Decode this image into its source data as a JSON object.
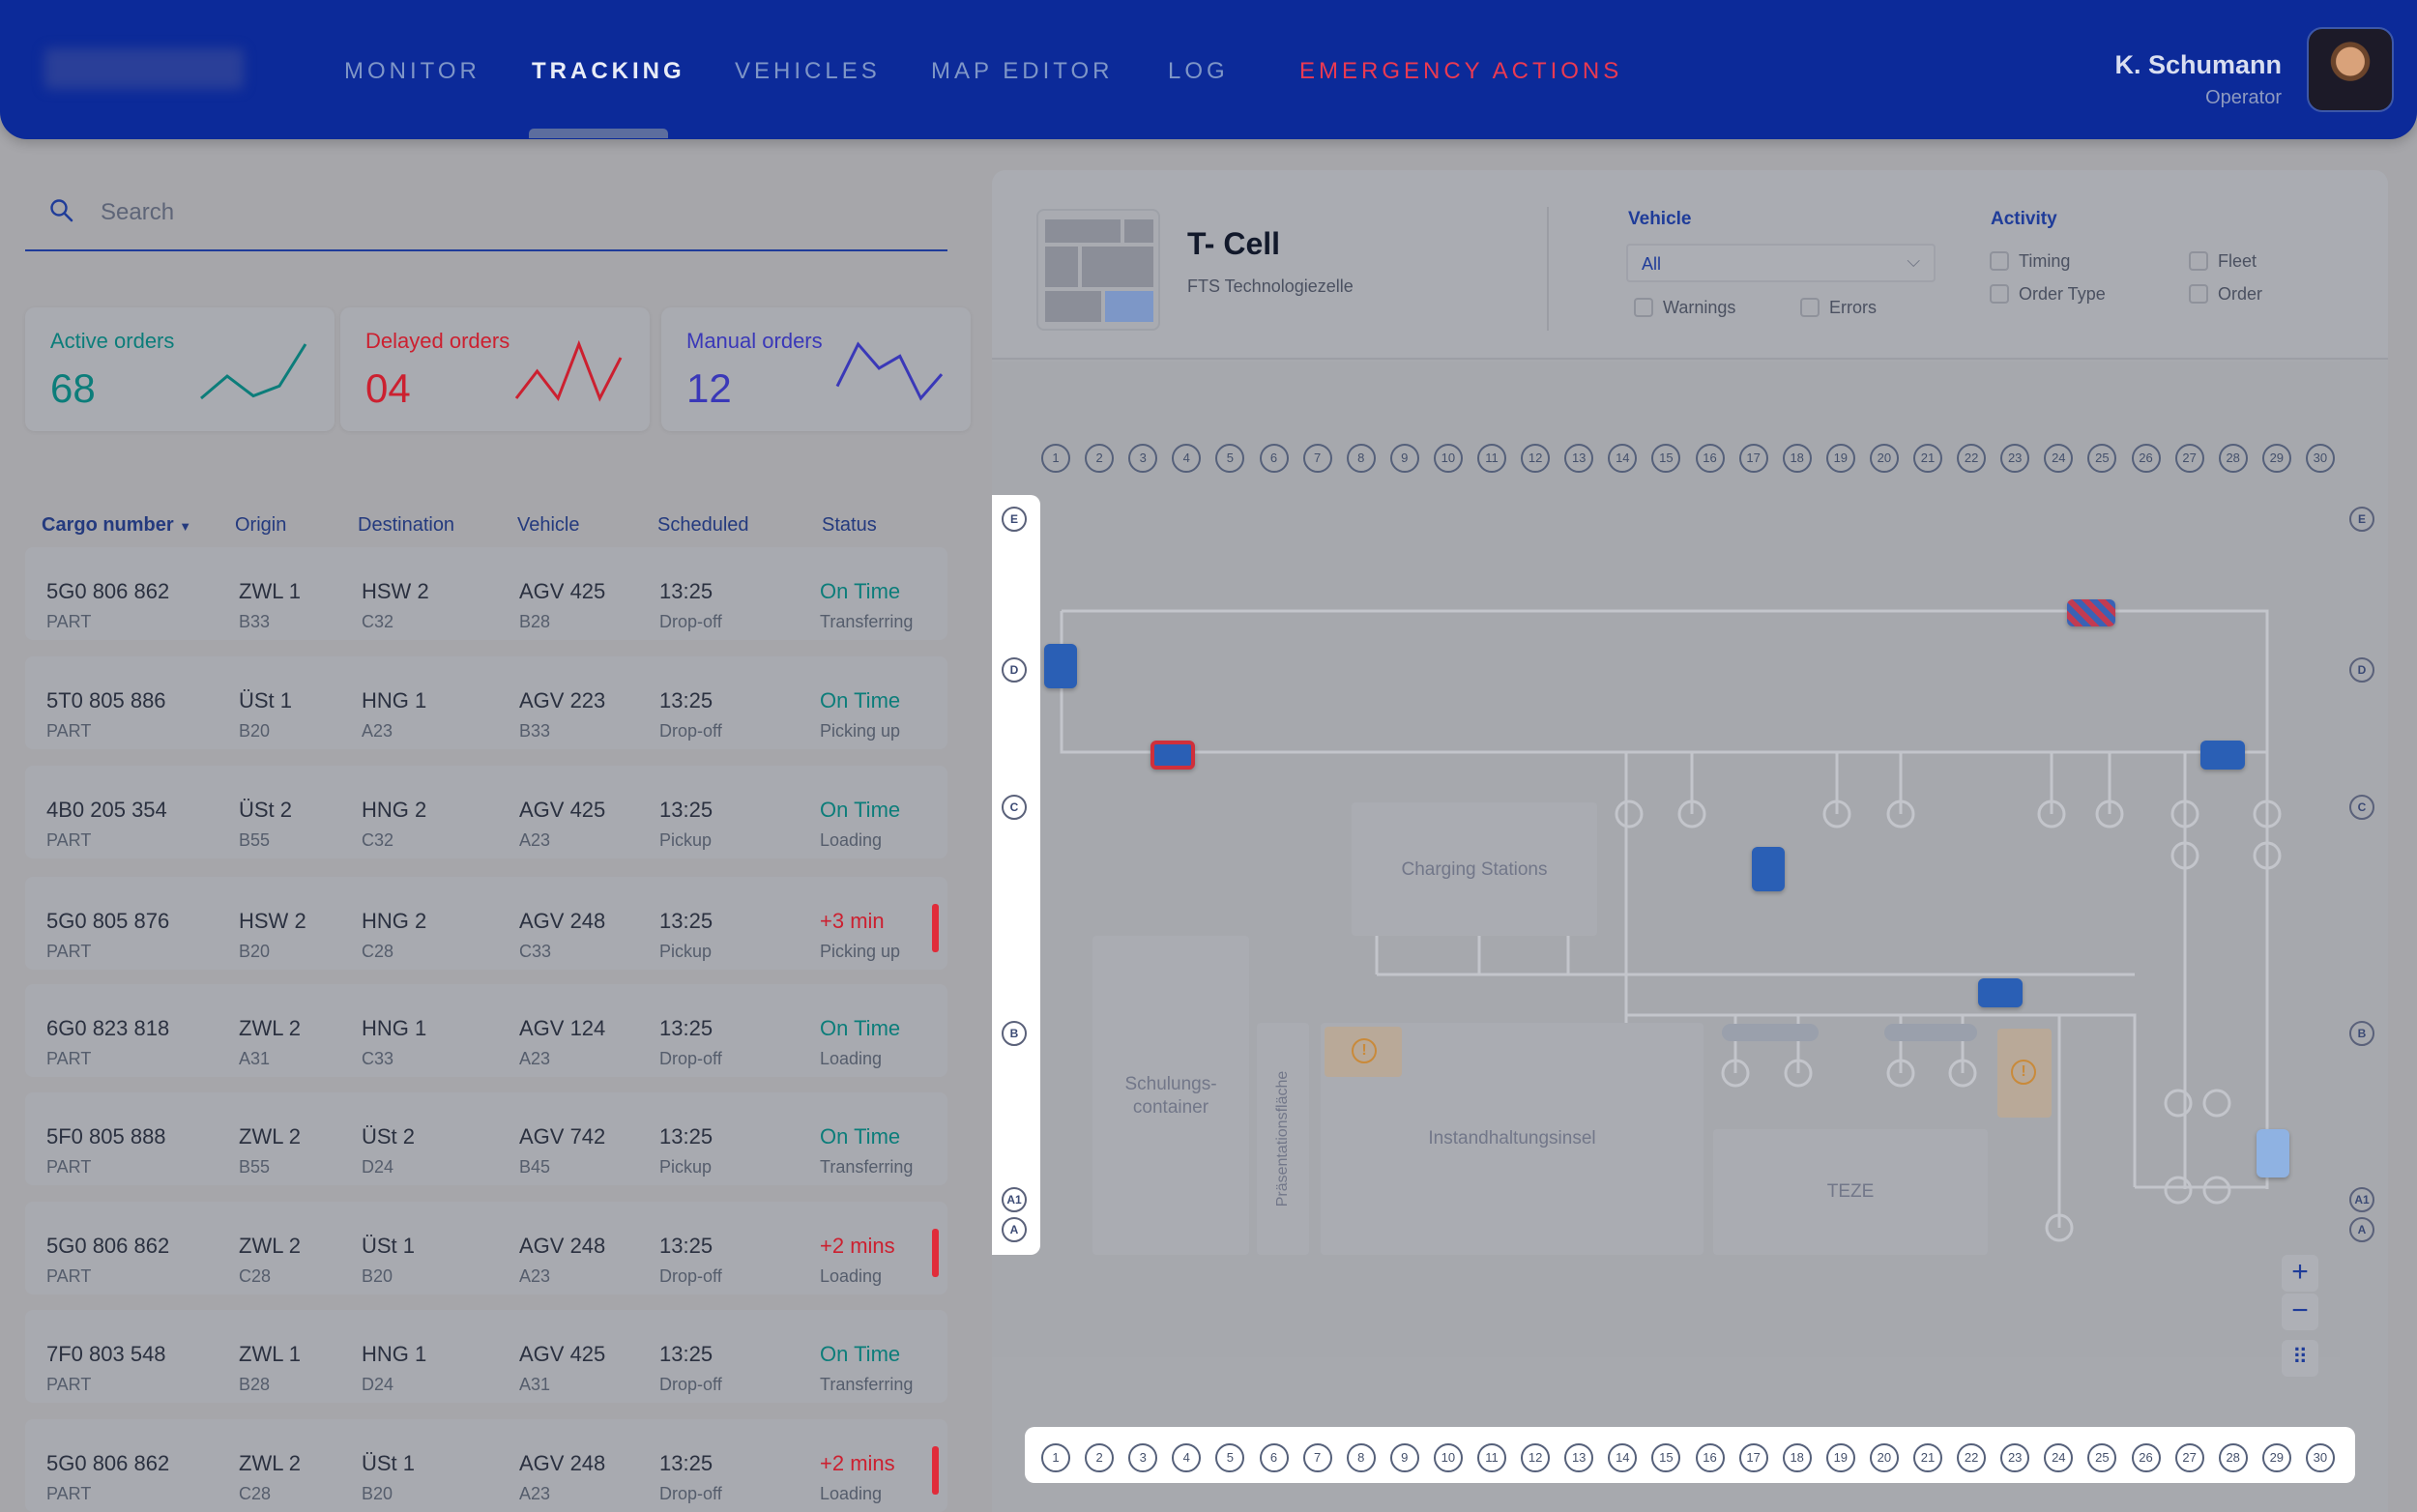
{
  "nav": {
    "items": [
      "MONITOR",
      "TRACKING",
      "VEHICLES",
      "MAP EDITOR",
      "LOG",
      "EMERGENCY ACTIONS"
    ],
    "active": "TRACKING"
  },
  "user": {
    "name": "K. Schumann",
    "role": "Operator"
  },
  "search": {
    "placeholder": "Search"
  },
  "stats": [
    {
      "label": "Active orders",
      "value": "68",
      "color": "#0c7d7a",
      "sparkline": [
        4,
        22,
        6,
        14,
        48
      ]
    },
    {
      "label": "Delayed orders",
      "value": "04",
      "color": "#cc2030",
      "sparkline": [
        8,
        12,
        8,
        16,
        8,
        14
      ]
    },
    {
      "label": "Manual orders",
      "value": "12",
      "color": "#3a38b8",
      "sparkline": [
        10,
        24,
        16,
        20,
        6,
        14
      ]
    }
  ],
  "table": {
    "columns": [
      "Cargo number",
      "Origin",
      "Destination",
      "Vehicle",
      "Scheduled",
      "Status"
    ],
    "rows": [
      {
        "cargo": "5G0 806 862",
        "type": "PART",
        "origin": "ZWL 1",
        "origin_sub": "B33",
        "dest": "HSW 2",
        "dest_sub": "C32",
        "vehicle": "AGV 425",
        "vehicle_sub": "B28",
        "time": "13:25",
        "action": "Drop-off",
        "status": "On Time",
        "status_sub": "Transferring",
        "delayed": false
      },
      {
        "cargo": "5T0 805 886",
        "type": "PART",
        "origin": "ÜSt 1",
        "origin_sub": "B20",
        "dest": "HNG 1",
        "dest_sub": "A23",
        "vehicle": "AGV 223",
        "vehicle_sub": "B33",
        "time": "13:25",
        "action": "Drop-off",
        "status": "On Time",
        "status_sub": "Picking up",
        "delayed": false
      },
      {
        "cargo": "4B0 205 354",
        "type": "PART",
        "origin": "ÜSt 2",
        "origin_sub": "B55",
        "dest": "HNG 2",
        "dest_sub": "C32",
        "vehicle": "AGV 425",
        "vehicle_sub": "A23",
        "time": "13:25",
        "action": "Pickup",
        "status": "On Time",
        "status_sub": "Loading",
        "delayed": false
      },
      {
        "cargo": "5G0 805 876",
        "type": "PART",
        "origin": "HSW 2",
        "origin_sub": "B20",
        "dest": "HNG 2",
        "dest_sub": "C28",
        "vehicle": "AGV 248",
        "vehicle_sub": "C33",
        "time": "13:25",
        "action": "Pickup",
        "status": "+3 min",
        "status_sub": "Picking up",
        "delayed": true
      },
      {
        "cargo": "6G0 823 818",
        "type": "PART",
        "origin": "ZWL 2",
        "origin_sub": "A31",
        "dest": "HNG 1",
        "dest_sub": "C33",
        "vehicle": "AGV 124",
        "vehicle_sub": "A23",
        "time": "13:25",
        "action": "Drop-off",
        "status": "On Time",
        "status_sub": "Loading",
        "delayed": false
      },
      {
        "cargo": "5F0 805 888",
        "type": "PART",
        "origin": "ZWL 2",
        "origin_sub": "B55",
        "dest": "ÜSt 2",
        "dest_sub": "D24",
        "vehicle": "AGV 742",
        "vehicle_sub": "B45",
        "time": "13:25",
        "action": "Pickup",
        "status": "On Time",
        "status_sub": "Transferring",
        "delayed": false
      },
      {
        "cargo": "5G0 806 862",
        "type": "PART",
        "origin": "ZWL 2",
        "origin_sub": "C28",
        "dest": "ÜSt 1",
        "dest_sub": "B20",
        "vehicle": "AGV 248",
        "vehicle_sub": "A23",
        "time": "13:25",
        "action": "Drop-off",
        "status": "+2 mins",
        "status_sub": "Loading",
        "delayed": true
      },
      {
        "cargo": "7F0 803 548",
        "type": "PART",
        "origin": "ZWL 1",
        "origin_sub": "B28",
        "dest": "HNG 1",
        "dest_sub": "D24",
        "vehicle": "AGV 425",
        "vehicle_sub": "A31",
        "time": "13:25",
        "action": "Drop-off",
        "status": "On Time",
        "status_sub": "Transferring",
        "delayed": false
      },
      {
        "cargo": "5G0 806 862",
        "type": "PART",
        "origin": "ZWL 2",
        "origin_sub": "C28",
        "dest": "ÜSt 1",
        "dest_sub": "B20",
        "vehicle": "AGV 248",
        "vehicle_sub": "A23",
        "time": "13:25",
        "action": "Drop-off",
        "status": "+2 mins",
        "status_sub": "Loading",
        "delayed": true
      }
    ]
  },
  "cell": {
    "title": "T- Cell",
    "subtitle": "FTS Technologiezelle"
  },
  "filters": {
    "vehicle_label": "Vehicle",
    "vehicle_value": "All",
    "warnings": "Warnings",
    "errors": "Errors",
    "activity_label": "Activity",
    "activity": [
      "Timing",
      "Fleet",
      "Order Type",
      "Order"
    ]
  },
  "map": {
    "columns": [
      "1",
      "2",
      "3",
      "4",
      "5",
      "6",
      "7",
      "8",
      "9",
      "10",
      "11",
      "12",
      "13",
      "14",
      "15",
      "16",
      "17",
      "18",
      "19",
      "20",
      "21",
      "22",
      "23",
      "24",
      "25",
      "26",
      "27",
      "28",
      "29",
      "30"
    ],
    "rows": [
      "E",
      "D",
      "C",
      "B",
      "A1",
      "A"
    ],
    "areas": {
      "charging": "Charging Stations",
      "schulung": "Schulungs-container",
      "praesentation": "Präsentationsfläche",
      "instandhaltung": "Instandhaltungsinsel",
      "teze": "TEZE"
    },
    "zoom_in": "+",
    "zoom_out": "−",
    "fit": "⠿"
  }
}
